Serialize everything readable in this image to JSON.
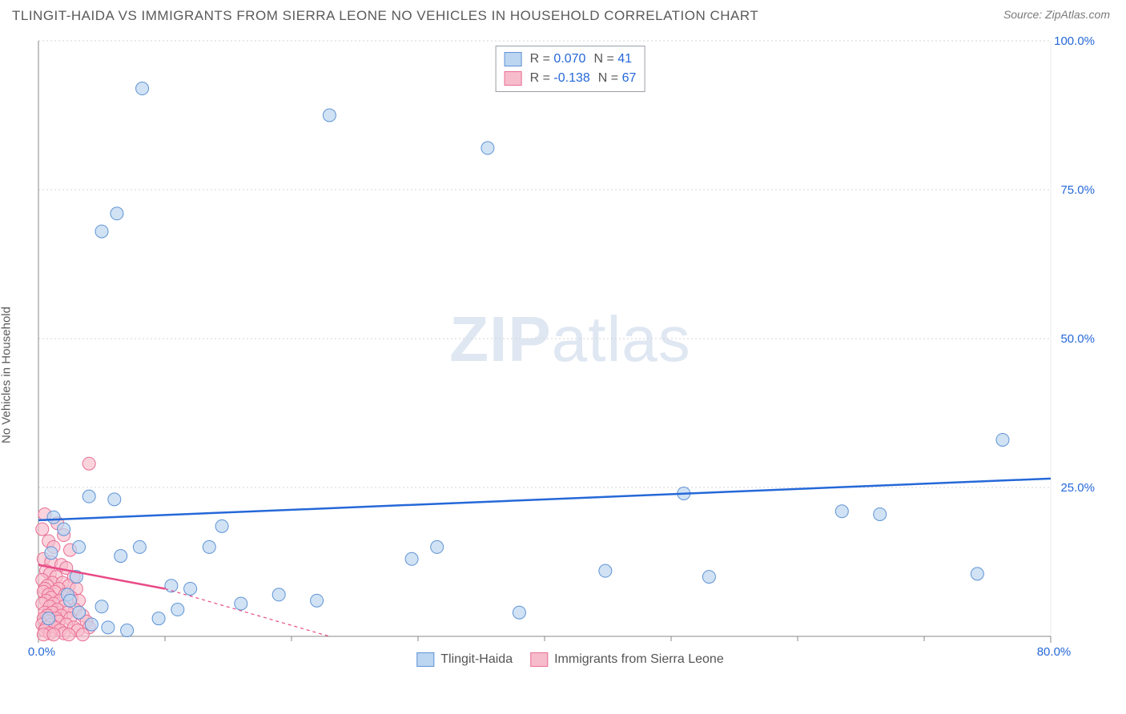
{
  "header": {
    "title": "TLINGIT-HAIDA VS IMMIGRANTS FROM SIERRA LEONE NO VEHICLES IN HOUSEHOLD CORRELATION CHART",
    "source": "Source: ZipAtlas.com"
  },
  "chart": {
    "type": "scatter",
    "ylabel": "No Vehicles in Household",
    "watermark_zip": "ZIP",
    "watermark_atlas": "atlas",
    "background_color": "#ffffff",
    "grid_color": "#d6d6d6",
    "xlim": [
      0,
      80
    ],
    "ylim": [
      0,
      100
    ],
    "xticks": [
      {
        "v": 0,
        "label": "0.0%"
      },
      {
        "v": 80,
        "label": "80.0%"
      }
    ],
    "xtick_minor": [
      10,
      20,
      30,
      40,
      50,
      60,
      70
    ],
    "yticks": [
      {
        "v": 25,
        "label": "25.0%"
      },
      {
        "v": 50,
        "label": "50.0%"
      },
      {
        "v": 75,
        "label": "75.0%"
      },
      {
        "v": 100,
        "label": "100.0%"
      }
    ],
    "series": {
      "blue": {
        "name": "Tlingit-Haida",
        "color_fill": "#bcd5f0",
        "color_stroke": "#5f93d6",
        "marker_r": 8,
        "R": "0.070",
        "N": "41",
        "trend": {
          "y0": 19.5,
          "y1": 26.5,
          "color": "#2568d8"
        },
        "points": [
          [
            8.2,
            92.0
          ],
          [
            23.0,
            87.5
          ],
          [
            35.5,
            82.0
          ],
          [
            6.2,
            71.0
          ],
          [
            5.0,
            68.0
          ],
          [
            76.2,
            33.0
          ],
          [
            51.0,
            24.0
          ],
          [
            63.5,
            21.0
          ],
          [
            66.5,
            20.5
          ],
          [
            44.8,
            11.0
          ],
          [
            74.2,
            10.5
          ],
          [
            2.3,
            7.0
          ],
          [
            29.5,
            13.0
          ],
          [
            31.5,
            15.0
          ],
          [
            53.0,
            10.0
          ],
          [
            38.0,
            4.0
          ],
          [
            22.0,
            6.0
          ],
          [
            19.0,
            7.0
          ],
          [
            11.0,
            4.5
          ],
          [
            13.5,
            15.0
          ],
          [
            16.0,
            5.5
          ],
          [
            2.0,
            18.0
          ],
          [
            4.0,
            23.5
          ],
          [
            6.0,
            23.0
          ],
          [
            3.0,
            10.0
          ],
          [
            1.2,
            20.0
          ],
          [
            1.0,
            14.0
          ],
          [
            5.5,
            1.5
          ],
          [
            3.2,
            4.0
          ],
          [
            0.8,
            3.0
          ],
          [
            8.0,
            15.0
          ],
          [
            9.5,
            3.0
          ],
          [
            7.0,
            1.0
          ],
          [
            12.0,
            8.0
          ],
          [
            2.5,
            6.0
          ],
          [
            4.2,
            2.0
          ],
          [
            14.5,
            18.5
          ],
          [
            3.2,
            15.0
          ],
          [
            10.5,
            8.5
          ],
          [
            6.5,
            13.5
          ],
          [
            5.0,
            5.0
          ]
        ]
      },
      "pink": {
        "name": "Immigrants from Sierra Leone",
        "color_fill": "#f7bccb",
        "color_stroke": "#e96f95",
        "marker_r": 8,
        "R": "-0.138",
        "N": "67",
        "trend_solid": {
          "x0": 0,
          "y0": 12.0,
          "x1": 10,
          "y1": 8.0,
          "color": "#e84a87"
        },
        "trend_dash": {
          "x0": 10,
          "y0": 8.0,
          "x1": 23,
          "y1": 0.0,
          "color": "#e84a87"
        },
        "points": [
          [
            4.0,
            29.0
          ],
          [
            0.5,
            20.5
          ],
          [
            0.3,
            18.0
          ],
          [
            1.5,
            19.0
          ],
          [
            2.0,
            17.0
          ],
          [
            0.8,
            16.0
          ],
          [
            1.2,
            15.0
          ],
          [
            2.5,
            14.5
          ],
          [
            0.4,
            13.0
          ],
          [
            1.0,
            12.5
          ],
          [
            1.8,
            12.0
          ],
          [
            0.6,
            11.0
          ],
          [
            2.2,
            11.5
          ],
          [
            0.9,
            10.5
          ],
          [
            1.4,
            10.0
          ],
          [
            2.8,
            10.0
          ],
          [
            0.3,
            9.5
          ],
          [
            1.1,
            9.0
          ],
          [
            1.9,
            9.0
          ],
          [
            0.7,
            8.5
          ],
          [
            2.4,
            8.5
          ],
          [
            0.5,
            8.0
          ],
          [
            1.6,
            8.0
          ],
          [
            3.0,
            8.0
          ],
          [
            0.4,
            7.5
          ],
          [
            1.3,
            7.5
          ],
          [
            2.1,
            7.0
          ],
          [
            0.8,
            7.0
          ],
          [
            1.0,
            6.5
          ],
          [
            2.6,
            6.5
          ],
          [
            0.6,
            6.0
          ],
          [
            1.7,
            6.0
          ],
          [
            3.2,
            6.0
          ],
          [
            0.3,
            5.5
          ],
          [
            1.2,
            5.5
          ],
          [
            2.0,
            5.0
          ],
          [
            0.9,
            5.0
          ],
          [
            1.5,
            4.5
          ],
          [
            2.9,
            4.5
          ],
          [
            0.5,
            4.0
          ],
          [
            1.1,
            4.0
          ],
          [
            2.3,
            4.0
          ],
          [
            0.7,
            3.5
          ],
          [
            1.8,
            3.5
          ],
          [
            3.5,
            3.5
          ],
          [
            0.4,
            3.0
          ],
          [
            1.4,
            3.0
          ],
          [
            2.5,
            3.0
          ],
          [
            0.8,
            2.5
          ],
          [
            1.6,
            2.5
          ],
          [
            3.8,
            2.5
          ],
          [
            0.3,
            2.0
          ],
          [
            1.0,
            2.0
          ],
          [
            2.2,
            2.0
          ],
          [
            0.6,
            1.5
          ],
          [
            1.3,
            1.5
          ],
          [
            2.8,
            1.5
          ],
          [
            4.0,
            1.5
          ],
          [
            0.5,
            1.0
          ],
          [
            1.7,
            1.0
          ],
          [
            3.1,
            1.0
          ],
          [
            0.9,
            0.5
          ],
          [
            2.0,
            0.5
          ],
          [
            0.4,
            0.3
          ],
          [
            1.2,
            0.3
          ],
          [
            2.4,
            0.3
          ],
          [
            3.5,
            0.3
          ]
        ]
      }
    },
    "stats_box": {
      "R_label": "R =",
      "N_label": "N ="
    },
    "title_fontsize": 17,
    "label_fontsize": 15
  }
}
